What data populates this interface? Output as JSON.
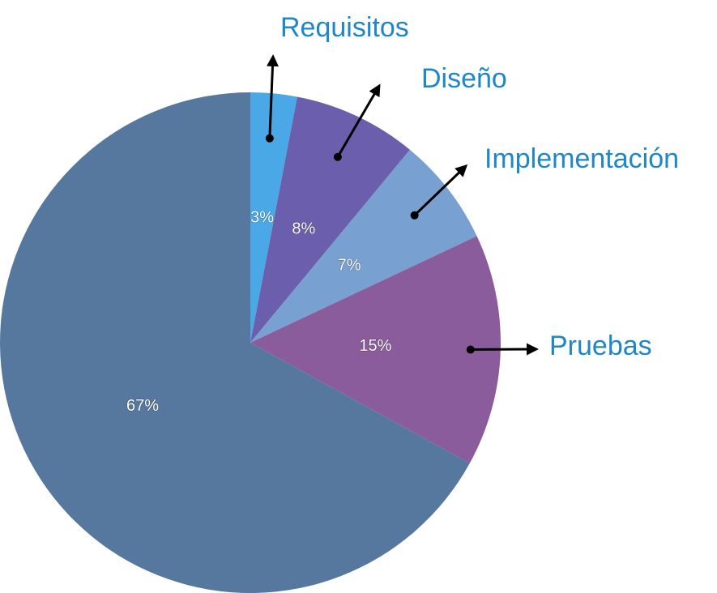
{
  "chart_data": {
    "type": "pie",
    "categories": [
      "Requisitos",
      "Diseño",
      "Implementación",
      "Pruebas",
      null
    ],
    "values": [
      3,
      8,
      7,
      15,
      67
    ],
    "value_labels": [
      "3%",
      "8%",
      "7%",
      "15%",
      "67%"
    ],
    "colors": [
      "#4aa8e6",
      "#6b5fad",
      "#78a0d0",
      "#8a5c9c",
      "#56789e"
    ]
  }
}
